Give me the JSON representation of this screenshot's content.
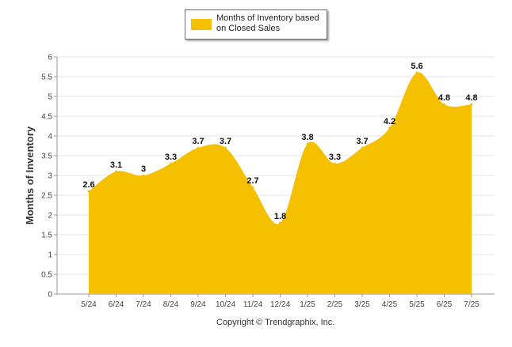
{
  "chart_data": {
    "type": "area",
    "series": [
      {
        "name": "Months of Inventory based on Closed Sales",
        "color": "#f5c000",
        "values": [
          2.6,
          3.1,
          3,
          3.3,
          3.7,
          3.7,
          2.7,
          1.8,
          3.8,
          3.3,
          3.7,
          4.2,
          5.6,
          4.8,
          4.8
        ]
      }
    ],
    "categories": [
      "5/24",
      "6/24",
      "7/24",
      "8/24",
      "9/24",
      "10/24",
      "11/24",
      "12/24",
      "1/25",
      "2/25",
      "3/25",
      "4/25",
      "5/25",
      "6/25",
      "7/25"
    ],
    "data_labels": [
      "2.6",
      "3.1",
      "3",
      "3.3",
      "3.7",
      "3.7",
      "2.7",
      "1.8",
      "3.8",
      "3.3",
      "3.7",
      "4.2",
      "5.6",
      "4.8",
      "4.8"
    ],
    "y_ticks": [
      "0",
      "0.5",
      "1",
      "1.5",
      "2",
      "2.5",
      "3",
      "3.5",
      "4",
      "4.5",
      "5",
      "5.5",
      "6"
    ],
    "ylim": [
      0,
      6
    ],
    "ylabel": "Months of Inventory",
    "xlabel": "",
    "title": "",
    "legend": {
      "position": "top-center",
      "label_line1": "Months of Inventory based",
      "label_line2": "on Closed Sales"
    },
    "grid": true
  },
  "footer": {
    "copyright": "Copyright © Trendgraphix, Inc."
  }
}
